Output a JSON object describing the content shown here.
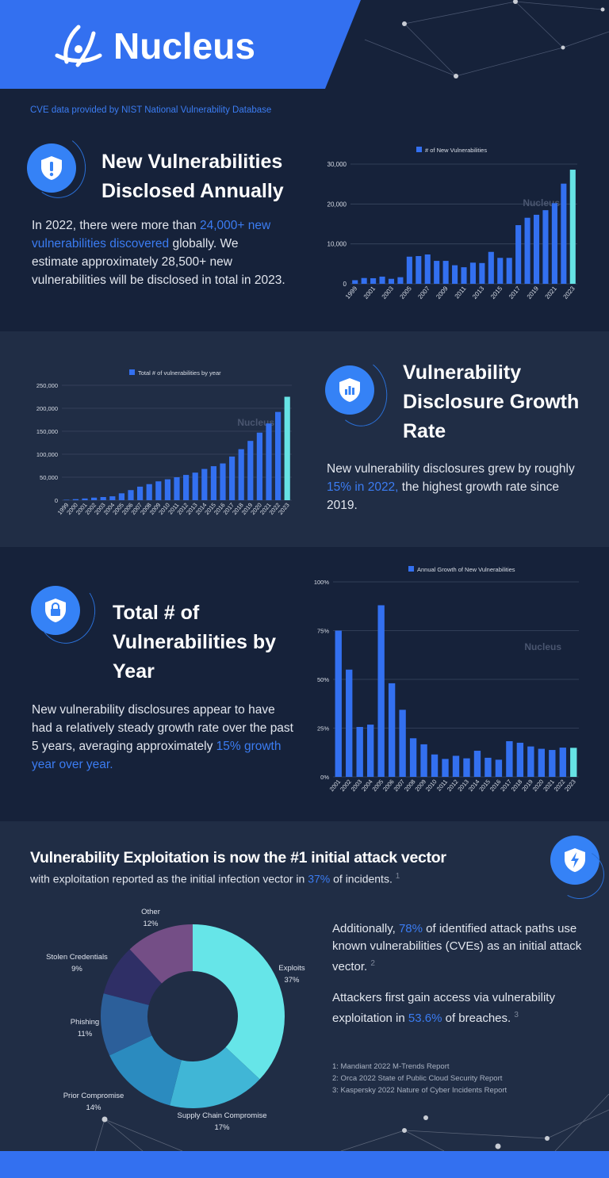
{
  "brand": {
    "name": "Nucleus",
    "color": "#3370f0"
  },
  "source_note": "CVE data provided by NIST National Vulnerability Database",
  "colors": {
    "bar": "#3370f0",
    "highlight": "#66e3e5",
    "dark_bg": "#16223a",
    "light_bg": "#202d45",
    "accent_text": "#3b7cf2"
  },
  "section1": {
    "icon": "shield-exclamation-icon",
    "title": "New Vulnerabilities Disclosed Annually",
    "text_a": "In 2022, there were more than ",
    "text_hl": "24,000+ new vulnerabilities discovered",
    "text_b": " globally. We estimate approximately 28,500+ new vulnerabilities will be disclosed in total in 2023."
  },
  "section2": {
    "icon": "shield-chart-icon",
    "title": "Vulnerability Disclosure Growth Rate",
    "text_a": "New vulnerability disclosures grew by roughly ",
    "text_hl": "15% in 2022,",
    "text_b": " the highest growth rate since 2019."
  },
  "section3": {
    "icon": "shield-lock-icon",
    "title": "Total # of Vulnerabilities by Year",
    "text_a": "New vulnerability disclosures appear to have had a relatively steady growth rate over the past 5 years, averaging approximately ",
    "text_hl": "15% growth year over year."
  },
  "section4": {
    "icon": "shield-lightning-icon",
    "title": "Vulnerability Exploitation is now the #1 initial attack vector",
    "sub_a": "with exploitation reported as the initial infection vector in ",
    "sub_hl": "37%",
    "sub_b": " of incidents.",
    "sub_ref": "1",
    "p1_a": "Additionally, ",
    "p1_hl": "78%",
    "p1_b": " of identified attack paths use known vulnerabilities (CVEs) as an initial attack vector.",
    "p1_ref": "2",
    "p2_a": "Attackers first gain access via vulnerability exploitation in ",
    "p2_hl": "53.6%",
    "p2_b": " of breaches.",
    "p2_ref": "3",
    "footnotes": [
      "1: Mandiant 2022 M-Trends Report",
      "2: Orca 2022 State of Public Cloud Security Report",
      "3: Kaspersky 2022 Nature of Cyber Incidents Report"
    ]
  },
  "chart_data": [
    {
      "type": "bar",
      "legend": "# of New Vulnerabilities",
      "watermark": "Nucleus",
      "grid": true,
      "categories": [
        "1999",
        "2000",
        "2001",
        "2002",
        "2003",
        "2004",
        "2005",
        "2006",
        "2007",
        "2008",
        "2009",
        "2010",
        "2011",
        "2012",
        "2013",
        "2014",
        "2015",
        "2016",
        "2017",
        "2018",
        "2019",
        "2020",
        "2021",
        "2022",
        "2023"
      ],
      "category_labels_shown": [
        "1999",
        "2001",
        "2003",
        "2005",
        "2007",
        "2009",
        "2011",
        "2013",
        "2015",
        "2017",
        "2019",
        "2021",
        "2023"
      ],
      "values": [
        900,
        1450,
        1400,
        1800,
        1250,
        1650,
        6800,
        6950,
        7350,
        5750,
        5750,
        4650,
        4150,
        5300,
        5200,
        8000,
        6500,
        6500,
        14700,
        16550,
        17300,
        18450,
        20200,
        25100,
        28600
      ],
      "highlight_last": true,
      "ylim": [
        0,
        30000
      ],
      "yticks": [
        0,
        10000,
        20000,
        30000
      ],
      "ytick_labels": [
        "0",
        "10,000",
        "20,000",
        "30,000"
      ]
    },
    {
      "type": "bar",
      "legend": "Total # of vulnerabilities by year",
      "watermark": "Nucleus",
      "grid": true,
      "categories": [
        "1999",
        "2000",
        "2001",
        "2002",
        "2003",
        "2004",
        "2005",
        "2006",
        "2007",
        "2008",
        "2009",
        "2010",
        "2011",
        "2012",
        "2013",
        "2014",
        "2015",
        "2016",
        "2017",
        "2018",
        "2019",
        "2020",
        "2021",
        "2022",
        "2023"
      ],
      "values": [
        900,
        2300,
        3800,
        5600,
        6900,
        8500,
        15000,
        22000,
        29500,
        35000,
        41000,
        45500,
        50000,
        55000,
        60000,
        68000,
        74000,
        80000,
        95000,
        111000,
        129000,
        147000,
        167000,
        192000,
        225000
      ],
      "highlight_last": true,
      "ylim": [
        0,
        250000
      ],
      "yticks": [
        0,
        50000,
        100000,
        150000,
        200000,
        250000
      ],
      "ytick_labels": [
        "0",
        "50,000",
        "100,000",
        "150,000",
        "200,000",
        "250,000"
      ]
    },
    {
      "type": "bar",
      "legend": "Annual Growth of New Vulnerabilities",
      "watermark": "Nucleus",
      "grid": true,
      "categories": [
        "2001",
        "2002",
        "2003",
        "2004",
        "2005",
        "2006",
        "2007",
        "2008",
        "2009",
        "2010",
        "2011",
        "2012",
        "2013",
        "2014",
        "2015",
        "2016",
        "2017",
        "2018",
        "2019",
        "2020",
        "2021",
        "2022",
        "2023"
      ],
      "values": [
        75,
        55,
        25.6,
        26.8,
        88,
        48,
        34.4,
        19.8,
        16.7,
        11.5,
        9.2,
        10.8,
        9.5,
        13.4,
        9.8,
        8.8,
        18.3,
        17.5,
        15.6,
        14.4,
        13.8,
        15,
        14.9
      ],
      "highlight_last": true,
      "ylim": [
        0,
        100
      ],
      "yticks": [
        0,
        25,
        50,
        75,
        100
      ],
      "ytick_labels": [
        "0%",
        "25%",
        "50%",
        "75%",
        "100%"
      ]
    },
    {
      "type": "pie",
      "donut": true,
      "labels": [
        "Exploits",
        "Supply Chain Compromise",
        "Prior Compromise",
        "Phishing",
        "Stolen Credentials",
        "Other"
      ],
      "values": [
        37,
        17,
        14,
        11,
        9,
        12
      ],
      "value_labels": [
        "37%",
        "17%",
        "14%",
        "11%",
        "9%",
        "12%"
      ],
      "colors": [
        "#66e5e8",
        "#40b6d6",
        "#2b8bbf",
        "#2c5f9a",
        "#2f2f66",
        "#744e86"
      ]
    }
  ]
}
